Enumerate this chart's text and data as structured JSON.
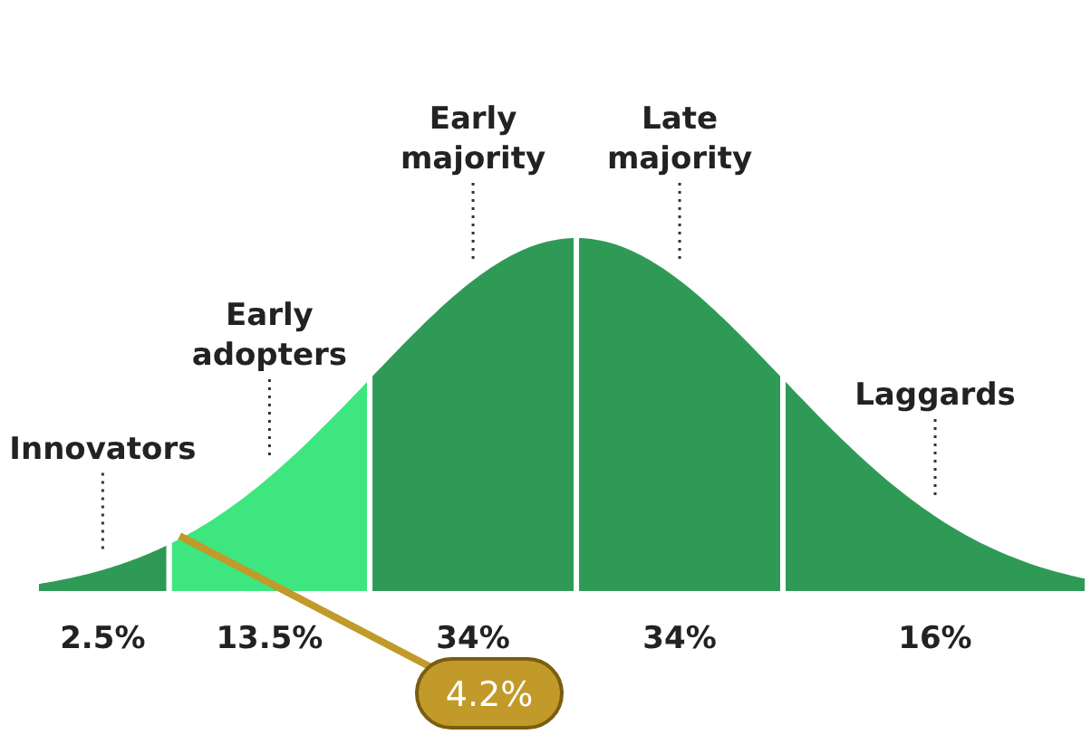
{
  "chart_data": {
    "type": "other",
    "categories": [
      "Innovators",
      "Early adopters",
      "Early majority",
      "Late majority",
      "Laggards"
    ],
    "values": [
      2.5,
      13.5,
      34,
      34,
      16
    ],
    "value_labels": [
      "2.5%",
      "13.5%",
      "34%",
      "34%",
      "16%"
    ],
    "colors": [
      "#2f9a56",
      "#3ee67f",
      "#2f9a56",
      "#2f9a56",
      "#2f9a56"
    ],
    "annotations": [
      "4.2%"
    ]
  }
}
